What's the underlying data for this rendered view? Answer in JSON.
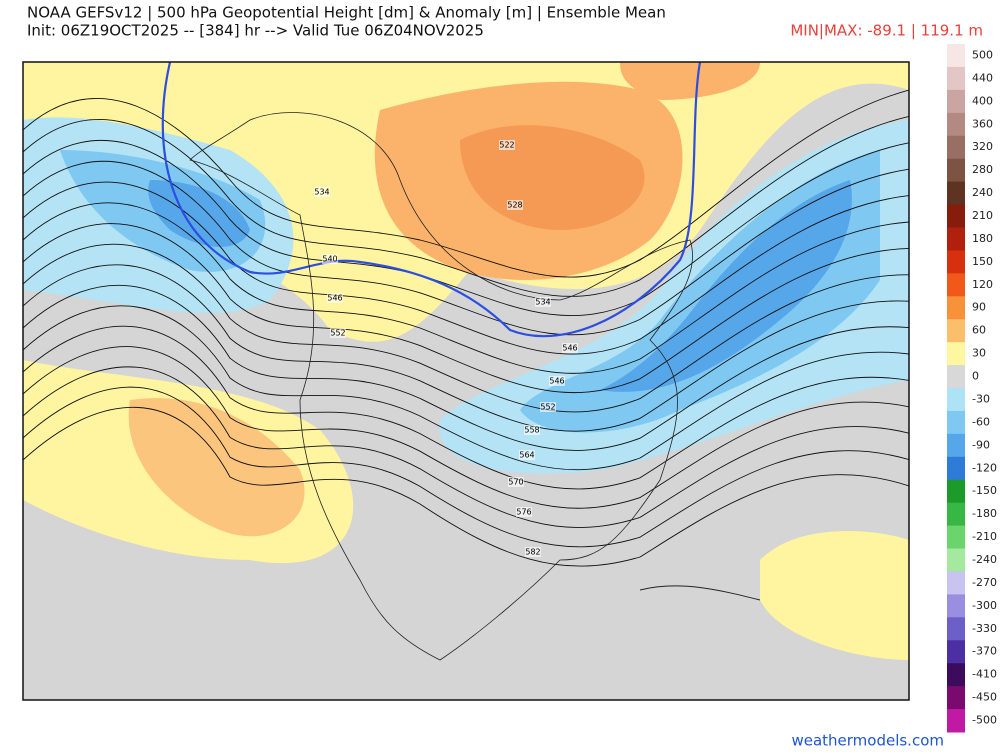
{
  "header": {
    "title": "NOAA GEFSv12 | 500 hPa Geopotential Height [dm] & Anomaly [m] | Ensemble Mean",
    "subtitle": "Init: 06Z19OCT2025 -- [384] hr --> Valid Tue 06Z04NOV2025",
    "minmax": "MIN|MAX: -89.1 | 119.1 m"
  },
  "map": {
    "contour_labels": [
      "534",
      "522",
      "528",
      "540",
      "546",
      "552",
      "534",
      "546",
      "546",
      "552",
      "558",
      "564",
      "570",
      "576",
      "582"
    ]
  },
  "colorbar": {
    "labels": [
      500,
      440,
      400,
      360,
      320,
      280,
      240,
      210,
      180,
      150,
      120,
      90,
      60,
      30,
      0,
      -30,
      -60,
      -90,
      -120,
      -150,
      -180,
      -210,
      -240,
      -270,
      -300,
      -330,
      -370,
      -410,
      -450,
      -500
    ],
    "colors": [
      "#f7e6e6",
      "#e3c6c6",
      "#cba5a1",
      "#b38a82",
      "#9a6f63",
      "#7d5444",
      "#5e3322",
      "#861c0c",
      "#b0200c",
      "#d6300e",
      "#f2581a",
      "#f8923a",
      "#fbbe6a",
      "#fff6a0",
      "#d8d8d8",
      "#aee3f5",
      "#7ec8f2",
      "#56a6ea",
      "#2f7bd8",
      "#1c9a2a",
      "#37b845",
      "#6cd46c",
      "#a5e8a0",
      "#c9c3ef",
      "#9a8ee0",
      "#6d5fc8",
      "#4b2fa3",
      "#3d0b5e",
      "#7a0a6e",
      "#c01aa4"
    ]
  },
  "footer": {
    "credit": "weathermodels.com"
  }
}
